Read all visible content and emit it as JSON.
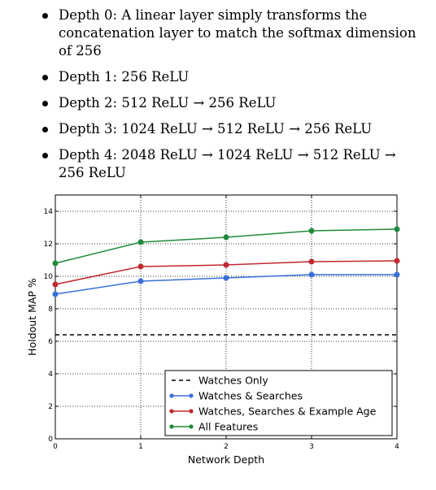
{
  "bullets": [
    "Depth 0: A linear layer simply transforms the concatenation layer to match the softmax dimension of 256",
    "Depth 1: 256 ReLU",
    "Depth 2: 512 ReLU → 256 ReLU",
    "Depth 3: 1024 ReLU → 512 ReLU → 256 ReLU",
    "Depth 4: 2048 ReLU → 1024 ReLU → 512 ReLU → 256 ReLU"
  ],
  "chart_data": {
    "type": "line",
    "xlabel": "Network Depth",
    "ylabel": "Holdout MAP %",
    "x": [
      0,
      1,
      2,
      3,
      4
    ],
    "xlim": [
      0,
      4
    ],
    "ylim": [
      0,
      15
    ],
    "xticks": [
      0,
      1,
      2,
      3,
      4
    ],
    "yticks": [
      0,
      2,
      4,
      6,
      8,
      10,
      12,
      14
    ],
    "grid": true,
    "legend_position": "bottom-right",
    "series": [
      {
        "name": "Watches Only",
        "values": [
          6.4,
          6.4,
          6.4,
          6.4,
          6.4
        ],
        "color": "#000000",
        "style": "dashed",
        "markers": false
      },
      {
        "name": "Watches & Searches",
        "values": [
          8.9,
          9.7,
          9.9,
          10.1,
          10.1
        ],
        "color": "#3a6fd8",
        "style": "solid",
        "markers": true
      },
      {
        "name": "Watches, Searches & Example Age",
        "values": [
          9.5,
          10.6,
          10.7,
          10.9,
          10.95
        ],
        "color": "#c0282e",
        "style": "solid",
        "markers": true
      },
      {
        "name": "All Features",
        "values": [
          10.8,
          12.1,
          12.4,
          12.8,
          12.9
        ],
        "color": "#1f8a3a",
        "style": "solid",
        "markers": true
      }
    ]
  }
}
